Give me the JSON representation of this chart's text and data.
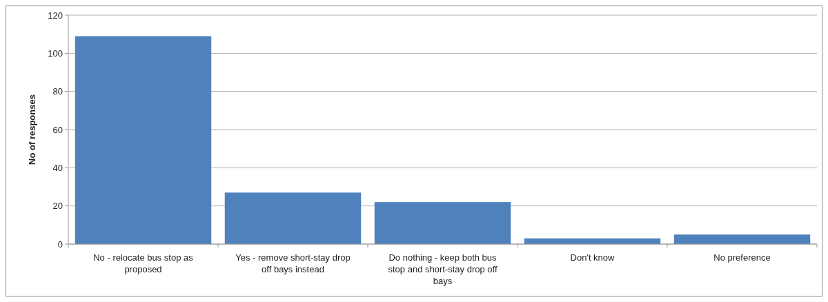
{
  "chart_data": {
    "type": "bar",
    "ylabel": "No of responses",
    "categories": [
      "No - relocate bus stop as proposed",
      "Yes - remove short-stay drop off bays instead",
      "Do nothing - keep both bus stop and short-stay drop off bays",
      "Don't know",
      "No preference"
    ],
    "values": [
      109,
      27,
      22,
      3,
      5
    ],
    "color": "#4f81bd",
    "ylim": [
      0,
      120
    ],
    "yticks": [
      0,
      20,
      40,
      60,
      80,
      100,
      120
    ],
    "grid": "y"
  }
}
